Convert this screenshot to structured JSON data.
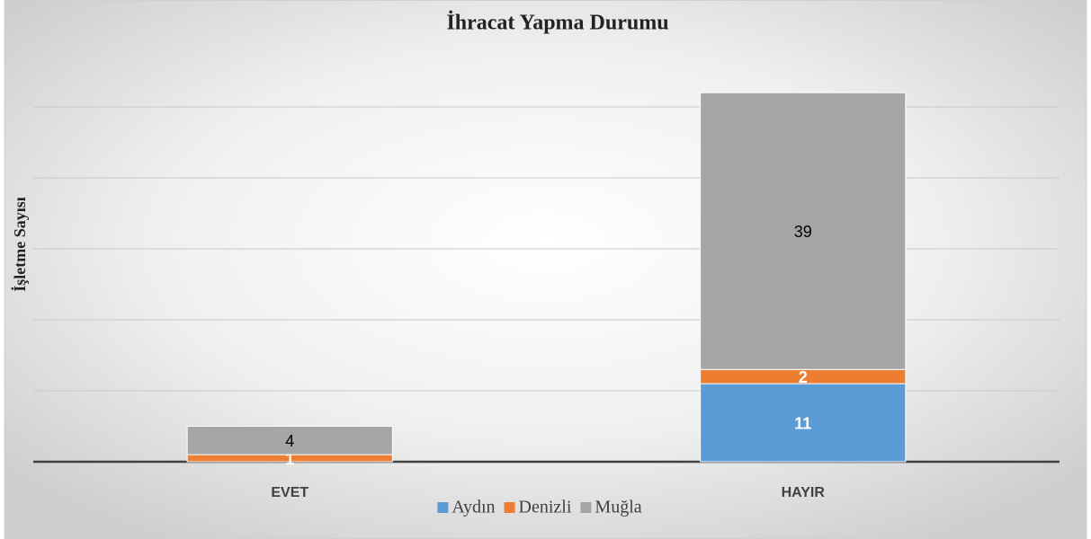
{
  "chart_data": {
    "type": "stacked_bar",
    "title": "İhracat Yapma Durumu",
    "y_label": "İşletme Sayısı",
    "categories": [
      "EVET",
      "HAYIR"
    ],
    "series": [
      {
        "name": "Aydın",
        "color": "#5b9bd5",
        "label_color": "#ffffff",
        "values": [
          null,
          11
        ]
      },
      {
        "name": "Denizli",
        "color": "#ed7d31",
        "label_color": "#ffffff",
        "values": [
          1,
          2
        ]
      },
      {
        "name": "Muğla",
        "color": "#a5a5a5",
        "label_color": "#000000",
        "values": [
          4,
          39
        ]
      }
    ],
    "ylim": [
      0,
      60
    ],
    "yticks": [
      0,
      10,
      20,
      30,
      40,
      50
    ],
    "grid": true,
    "legend": "bottom"
  }
}
